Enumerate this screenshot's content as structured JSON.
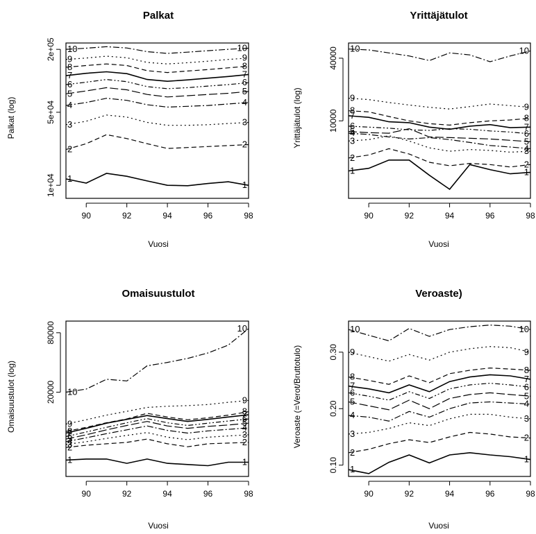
{
  "panels": [
    {
      "title": "Palkat",
      "xlabel": "Vuosi",
      "ylabel": "Palkat (log)",
      "xticks": [
        90,
        92,
        94,
        96,
        98
      ],
      "ytick_labels": [
        "1e+04",
        "5e+04",
        "2e+05"
      ],
      "end_labels": [
        "1",
        "2",
        "3",
        "4",
        "5",
        "6",
        "7",
        "8",
        "9",
        "10"
      ]
    },
    {
      "title": "Yrittäjätulot",
      "xlabel": "Vuosi",
      "ylabel": "Yrittäjätulot (log)",
      "xticks": [
        90,
        92,
        94,
        96,
        98
      ],
      "ytick_labels": [
        "10000",
        "40000"
      ],
      "end_labels": [
        "1",
        "2",
        "3",
        "4",
        "5",
        "6",
        "7",
        "8",
        "9",
        "10"
      ]
    },
    {
      "title": "Omaisuustulot",
      "xlabel": "Vuosi",
      "ylabel": "Omaisuustulot (log)",
      "xticks": [
        90,
        92,
        94,
        96,
        98
      ],
      "ytick_labels": [
        "20000",
        "80000"
      ],
      "end_labels": [
        "1",
        "2",
        "3",
        "4",
        "5",
        "6",
        "7",
        "8",
        "9",
        "10"
      ]
    },
    {
      "title": "Veroaste)",
      "xlabel": "Vuosi",
      "ylabel": "Veroaste (=Verot/Bruttotulo)",
      "xticks": [
        90,
        92,
        94,
        96,
        98
      ],
      "ytick_labels": [
        "0.10",
        "0.20",
        "0.30"
      ],
      "end_labels": [
        "1",
        "2",
        "3",
        "4",
        "5",
        "6",
        "7",
        "8",
        "9",
        "10"
      ]
    }
  ],
  "chart_data": [
    {
      "type": "line",
      "title": "Palkat",
      "xlabel": "Vuosi",
      "ylabel": "Palkat (log)",
      "log_y": true,
      "xlim": [
        89,
        98
      ],
      "ylim": [
        7500,
        230000
      ],
      "yticks": [
        10000,
        50000,
        200000
      ],
      "x": [
        89,
        90,
        91,
        92,
        93,
        94,
        95,
        96,
        97,
        98
      ],
      "series": [
        {
          "name": "1",
          "values": [
            11500,
            10500,
            13000,
            12200,
            11000,
            10000,
            9900,
            10400,
            10800,
            10000
          ]
        },
        {
          "name": "2",
          "values": [
            22000,
            25000,
            30500,
            28000,
            25000,
            22500,
            23000,
            23500,
            24000,
            24500
          ]
        },
        {
          "name": "3",
          "values": [
            38000,
            41000,
            47000,
            45000,
            40000,
            37500,
            37500,
            38000,
            39000,
            40000
          ]
        },
        {
          "name": "4",
          "values": [
            58000,
            62000,
            68000,
            65000,
            59000,
            56000,
            57000,
            58000,
            60000,
            62000
          ]
        },
        {
          "name": "5",
          "values": [
            75000,
            80000,
            86000,
            82000,
            74000,
            70000,
            72000,
            74000,
            76000,
            79000
          ]
        },
        {
          "name": "6",
          "values": [
            92000,
            97000,
            103000,
            98000,
            88000,
            84000,
            86000,
            89000,
            92000,
            96000
          ]
        },
        {
          "name": "7",
          "values": [
            112000,
            118000,
            122000,
            117000,
            103000,
            99000,
            102000,
            106000,
            110000,
            115000
          ]
        },
        {
          "name": "8",
          "values": [
            135000,
            140000,
            145000,
            140000,
            125000,
            120000,
            124000,
            128000,
            133000,
            138000
          ]
        },
        {
          "name": "9",
          "values": [
            160000,
            165000,
            172000,
            166000,
            150000,
            145000,
            149000,
            154000,
            160000,
            165000
          ]
        },
        {
          "name": "10",
          "values": [
            200000,
            205000,
            212000,
            206000,
            190000,
            183000,
            188000,
            194000,
            200000,
            205000
          ]
        }
      ]
    },
    {
      "type": "line",
      "title": "Yrittäjätulot",
      "xlabel": "Vuosi",
      "ylabel": "Yrittäjätulot (log)",
      "log_y": true,
      "xlim": [
        89,
        98
      ],
      "ylim": [
        1800,
        56000
      ],
      "yticks": [
        10000,
        40000
      ],
      "x": [
        89,
        90,
        91,
        92,
        93,
        94,
        95,
        96,
        97,
        98
      ],
      "series": [
        {
          "name": "1",
          "values": [
            3300,
            3500,
            4200,
            4200,
            3000,
            2200,
            3800,
            3400,
            3100,
            3200
          ]
        },
        {
          "name": "2",
          "values": [
            4400,
            4700,
            5400,
            4800,
            4000,
            3700,
            3900,
            3800,
            3600,
            3800
          ]
        },
        {
          "name": "3",
          "values": [
            6400,
            6600,
            7200,
            6400,
            5500,
            5100,
            5300,
            5200,
            5000,
            5100
          ]
        },
        {
          "name": "4",
          "values": [
            7600,
            7400,
            7000,
            6700,
            6900,
            6600,
            6200,
            5800,
            5600,
            5400
          ]
        },
        {
          "name": "5",
          "values": [
            7900,
            7700,
            7600,
            8400,
            7000,
            6900,
            6800,
            6700,
            6500,
            6300
          ]
        },
        {
          "name": "6",
          "values": [
            8900,
            8700,
            8500,
            8200,
            8100,
            8400,
            8300,
            8000,
            7800,
            7500
          ]
        },
        {
          "name": "7",
          "values": [
            11200,
            10800,
            9800,
            9600,
            8700,
            8300,
            8900,
            9200,
            8600,
            8700
          ]
        },
        {
          "name": "8",
          "values": [
            12500,
            12200,
            11000,
            10000,
            9400,
            9100,
            9600,
            10000,
            10200,
            10600
          ]
        },
        {
          "name": "9",
          "values": [
            16500,
            16000,
            15000,
            14200,
            13500,
            13000,
            13700,
            14500,
            14000,
            13500
          ]
        },
        {
          "name": "10",
          "values": [
            49000,
            48000,
            45000,
            42000,
            38000,
            45000,
            43000,
            37000,
            42000,
            47000
          ]
        }
      ]
    },
    {
      "type": "line",
      "title": "Omaisuustulot",
      "xlabel": "Vuosi",
      "ylabel": "Omaisuustulot (log)",
      "log_y": true,
      "xlim": [
        89,
        98
      ],
      "ylim": [
        2800,
        105000
      ],
      "yticks": [
        20000,
        80000
      ],
      "x": [
        89,
        90,
        91,
        92,
        93,
        94,
        95,
        96,
        97,
        98
      ],
      "series": [
        {
          "name": "1",
          "values": [
            4100,
            4200,
            4200,
            3800,
            4200,
            3800,
            3700,
            3600,
            3900,
            3900
          ]
        },
        {
          "name": "2",
          "values": [
            5500,
            5800,
            6000,
            6200,
            6700,
            6000,
            5600,
            6000,
            6100,
            6200
          ]
        },
        {
          "name": "3",
          "values": [
            5900,
            6300,
            6800,
            7300,
            7800,
            7000,
            6600,
            7000,
            7200,
            7400
          ]
        },
        {
          "name": "4",
          "values": [
            6300,
            6900,
            7600,
            8300,
            9100,
            8200,
            7700,
            8100,
            8400,
            8700
          ]
        },
        {
          "name": "5",
          "values": [
            6700,
            7400,
            8300,
            9200,
            10100,
            9100,
            8600,
            9000,
            9300,
            9700
          ]
        },
        {
          "name": "6",
          "values": [
            7100,
            7900,
            8800,
            9800,
            10800,
            9800,
            9200,
            9700,
            10200,
            10700
          ]
        },
        {
          "name": "7",
          "values": [
            7700,
            8600,
            9700,
            10600,
            11600,
            10800,
            10100,
            10600,
            11200,
            11800
          ]
        },
        {
          "name": "8",
          "values": [
            8000,
            8800,
            9800,
            10700,
            12200,
            11200,
            10500,
            11000,
            11700,
            12700
          ]
        },
        {
          "name": "9",
          "values": [
            9500,
            10500,
            11700,
            12800,
            14000,
            14400,
            14600,
            15000,
            15800,
            16500
          ]
        },
        {
          "name": "10",
          "values": [
            20000,
            21500,
            27000,
            26000,
            37000,
            40000,
            44000,
            50000,
            60000,
            88000
          ]
        }
      ]
    },
    {
      "type": "line",
      "title": "Veroaste)",
      "xlabel": "Vuosi",
      "ylabel": "Veroaste (=Verot/Bruttotulo)",
      "log_y": false,
      "xlim": [
        89,
        98
      ],
      "ylim": [
        0.08,
        0.355
      ],
      "yticks": [
        0.1,
        0.2,
        0.3
      ],
      "x": [
        89,
        90,
        91,
        92,
        93,
        94,
        95,
        96,
        97,
        98
      ],
      "series": [
        {
          "name": "1",
          "values": [
            0.092,
            0.085,
            0.105,
            0.118,
            0.104,
            0.118,
            0.122,
            0.118,
            0.115,
            0.11
          ]
        },
        {
          "name": "2",
          "values": [
            0.122,
            0.128,
            0.138,
            0.145,
            0.14,
            0.15,
            0.158,
            0.155,
            0.15,
            0.148
          ]
        },
        {
          "name": "3",
          "values": [
            0.155,
            0.158,
            0.165,
            0.175,
            0.17,
            0.182,
            0.19,
            0.19,
            0.185,
            0.182
          ]
        },
        {
          "name": "4",
          "values": [
            0.188,
            0.185,
            0.178,
            0.195,
            0.185,
            0.2,
            0.21,
            0.212,
            0.21,
            0.208
          ]
        },
        {
          "name": "5",
          "values": [
            0.212,
            0.205,
            0.198,
            0.215,
            0.2,
            0.218,
            0.225,
            0.228,
            0.225,
            0.222
          ]
        },
        {
          "name": "6",
          "values": [
            0.228,
            0.222,
            0.215,
            0.23,
            0.218,
            0.235,
            0.242,
            0.245,
            0.242,
            0.238
          ]
        },
        {
          "name": "7",
          "values": [
            0.24,
            0.235,
            0.228,
            0.242,
            0.23,
            0.248,
            0.256,
            0.26,
            0.258,
            0.252
          ]
        },
        {
          "name": "8",
          "values": [
            0.256,
            0.25,
            0.243,
            0.258,
            0.246,
            0.262,
            0.268,
            0.272,
            0.27,
            0.268
          ]
        },
        {
          "name": "9",
          "values": [
            0.3,
            0.292,
            0.284,
            0.296,
            0.286,
            0.3,
            0.306,
            0.31,
            0.308,
            0.3
          ]
        },
        {
          "name": "10",
          "values": [
            0.34,
            0.33,
            0.32,
            0.342,
            0.328,
            0.34,
            0.345,
            0.348,
            0.346,
            0.34
          ]
        }
      ]
    }
  ]
}
